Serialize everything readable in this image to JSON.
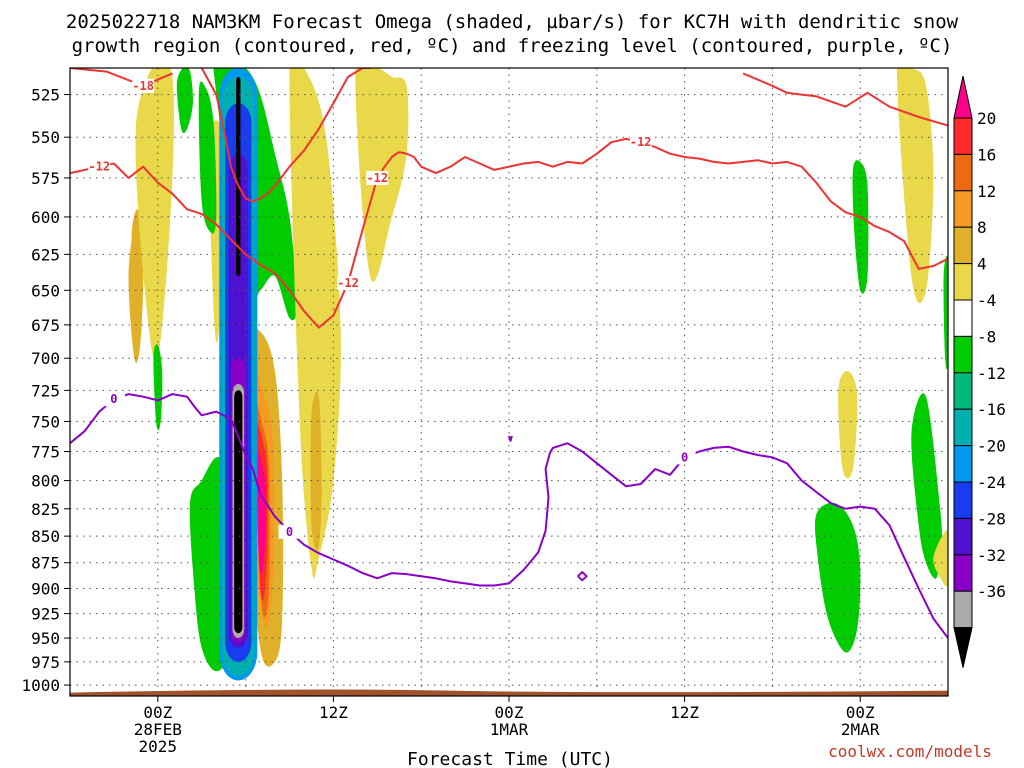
{
  "chart_data": {
    "type": "heatmap",
    "title_lines": [
      "2025022718 NAM3KM Forecast Omega (shaded, µbar/s) for KC7H with dendritic snow",
      "growth region (contoured, red, ºC) and freezing level (contoured, purple, ºC)"
    ],
    "xlabel": "Forecast Time (UTC)",
    "ylabel": "",
    "credit": "coolwx.com/models",
    "x_ticks": [
      {
        "hours": 0,
        "labels": [
          "00Z",
          "28FEB",
          "2025"
        ]
      },
      {
        "hours": 12,
        "labels": [
          "12Z"
        ]
      },
      {
        "hours": 24,
        "labels": [
          "00Z",
          "1MAR"
        ]
      },
      {
        "hours": 36,
        "labels": [
          "12Z"
        ]
      },
      {
        "hours": 48,
        "labels": [
          "00Z",
          "2MAR"
        ]
      }
    ],
    "xlim_hours": [
      -6,
      54
    ],
    "y_ticks": [
      525,
      550,
      575,
      600,
      625,
      650,
      675,
      700,
      725,
      750,
      775,
      800,
      825,
      850,
      875,
      900,
      925,
      950,
      975,
      1000
    ],
    "ylim_hpa": [
      510,
      1012
    ],
    "y_scale": "log-pressure",
    "grid": true,
    "colorbar": {
      "labels": [
        "20",
        "16",
        "12",
        "8",
        "4",
        "-4",
        "-8",
        "-12",
        "-16",
        "-20",
        "-24",
        "-28",
        "-32",
        "-36"
      ],
      "colors": {
        "magenta": "#ff0088",
        "red": "#ff2a2a",
        "dark_orange": "#ee6a10",
        "orange": "#f59a22",
        "gold": "#e0b028",
        "yellow": "#e8d84a",
        "white": "#ffffff",
        "green": "#00cc00",
        "sea_green": "#00b878",
        "teal": "#00b0b0",
        "sky_blue": "#0099ee",
        "blue": "#1a3cf0",
        "indigo": "#5010d0",
        "violet": "#8800c8",
        "gray": "#aaaaaa",
        "black": "#000000"
      }
    },
    "dgz_contours": [
      {
        "level": -18,
        "hours": [
          -6,
          -3.5,
          -1,
          1
        ],
        "pressure": [
          510,
          512,
          520,
          513
        ]
      },
      {
        "level": -18,
        "hours": [
          40,
          42,
          43,
          44,
          45,
          47,
          48.5,
          50,
          52,
          54
        ],
        "pressure": [
          513,
          520,
          524,
          525,
          526,
          532,
          524,
          532,
          538,
          543
        ]
      },
      {
        "level": -12,
        "hours": [
          -6,
          -4,
          -3,
          -2,
          -1,
          0,
          1,
          2,
          3,
          4,
          5,
          6,
          7,
          8,
          9,
          10,
          11,
          12,
          13,
          14,
          15,
          15.5,
          16,
          16.3,
          16.5,
          17,
          17.5,
          18,
          19,
          20,
          21,
          22,
          23,
          24,
          25,
          26,
          27,
          28,
          29,
          30,
          31,
          32,
          33,
          34,
          35,
          36,
          37,
          38,
          39,
          40,
          41,
          42,
          43,
          44,
          45,
          46,
          47,
          48,
          49,
          50,
          51,
          52,
          53,
          54
        ],
        "pressure": [
          572,
          568,
          566,
          575,
          568,
          578,
          585,
          595,
          598,
          605,
          615,
          625,
          632,
          638,
          650,
          665,
          677,
          668,
          645,
          608,
          575,
          568,
          562,
          560,
          559,
          560,
          562,
          568,
          572,
          568,
          562,
          566,
          570,
          568,
          566,
          565,
          568,
          565,
          566,
          560,
          553,
          551,
          553,
          556,
          560,
          562,
          563,
          565,
          566,
          565,
          564,
          566,
          565,
          568,
          578,
          590,
          597,
          600,
          606,
          610,
          616,
          635,
          633,
          628
        ]
      },
      {
        "level": -12,
        "hours": [
          3,
          4,
          4.5,
          5,
          5.5,
          6,
          6.5,
          7,
          7.5,
          8,
          9,
          10,
          11,
          12,
          13,
          14,
          14.5
        ],
        "pressure": [
          510,
          525,
          545,
          568,
          580,
          588,
          590,
          588,
          585,
          580,
          568,
          558,
          545,
          530,
          515,
          510,
          510
        ]
      }
    ],
    "freezing_level_contours": [
      {
        "level": 0,
        "hours": [
          -6,
          -5,
          -4,
          -3,
          -2,
          -1,
          0,
          1,
          2,
          2.5,
          3,
          4,
          5,
          6,
          6.5,
          7,
          8,
          9,
          10,
          11,
          12,
          13,
          14,
          15,
          16,
          17,
          18,
          19,
          20,
          21,
          22,
          23,
          24,
          25,
          26,
          26.5,
          26.7,
          26.5,
          26.8,
          27,
          28,
          29,
          30,
          31,
          32,
          33,
          34,
          35,
          36,
          37,
          38,
          39,
          40,
          41,
          42,
          43,
          44,
          45,
          46,
          47,
          48,
          49,
          50,
          51,
          52,
          53,
          54
        ],
        "pressure": [
          768,
          758,
          742,
          732,
          728,
          730,
          733,
          728,
          730,
          738,
          745,
          742,
          748,
          778,
          790,
          812,
          832,
          846,
          858,
          866,
          872,
          878,
          885,
          890,
          885,
          886,
          888,
          890,
          893,
          895,
          897,
          897,
          895,
          882,
          865,
          845,
          815,
          790,
          776,
          772,
          768,
          775,
          785,
          795,
          805,
          803,
          790,
          795,
          780,
          775,
          772,
          771,
          775,
          778,
          780,
          785,
          800,
          810,
          820,
          825,
          823,
          825,
          840,
          870,
          900,
          930,
          950
        ]
      },
      {
        "level": 0,
        "hours": [
          24,
          24.1,
          24.2
        ],
        "pressure": [
          762,
          766,
          762
        ]
      },
      {
        "level": 0,
        "hours": [
          28.7,
          29,
          29.3,
          29,
          28.7
        ],
        "pressure": [
          888,
          884,
          888,
          892,
          888
        ]
      }
    ],
    "omega_regions": [
      {
        "color": "gold",
        "hours": [
          -2,
          -1.5,
          -1.2,
          -1,
          -1.2,
          -1.6
        ],
        "pressure": [
          640,
          600,
          600,
          640,
          690,
          700
        ]
      },
      {
        "color": "gold",
        "hours": [
          -1.8,
          -1.4,
          -1.1,
          -1.4
        ],
        "pressure": [
          615,
          595,
          620,
          665
        ]
      },
      {
        "color": "yellow",
        "hours": [
          -1.5,
          -0.7,
          0,
          1,
          1,
          0.3,
          -0.3,
          -1.2
        ],
        "pressure": [
          545,
          515,
          510,
          515,
          575,
          675,
          700,
          615
        ]
      },
      {
        "color": "green",
        "hours": [
          1.3,
          1.7,
          2.2,
          2.4,
          2,
          1.6
        ],
        "pressure": [
          520,
          510,
          512,
          530,
          545,
          545
        ]
      },
      {
        "color": "green",
        "hours": [
          -0.3,
          0,
          0.3,
          0.2,
          -0.1
        ],
        "pressure": [
          700,
          690,
          710,
          750,
          752
        ]
      },
      {
        "color": "yellow",
        "hours": [
          3.5,
          4,
          4.4,
          4.3,
          3.9
        ],
        "pressure": [
          560,
          540,
          560,
          660,
          680
        ]
      },
      {
        "color": "green",
        "hours": [
          2.8,
          3.2,
          3.8,
          4,
          3.6,
          3
        ],
        "pressure": [
          525,
          520,
          540,
          600,
          610,
          590
        ]
      },
      {
        "color": "green",
        "hours": [
          3.8,
          4.5,
          5,
          6,
          7,
          8,
          9,
          9.5,
          9,
          8,
          7,
          6
        ],
        "pressure": [
          510,
          510,
          510,
          510,
          525,
          560,
          600,
          660,
          670,
          640,
          650,
          655
        ]
      },
      {
        "color": "yellow",
        "hours": [
          9,
          10,
          11.5,
          12.5,
          12,
          11,
          10.5,
          9.7
        ],
        "pressure": [
          510,
          510,
          550,
          680,
          800,
          870,
          880,
          750
        ]
      },
      {
        "color": "yellow",
        "hours": [
          13.5,
          15,
          16,
          17,
          17,
          16,
          14.5
        ],
        "pressure": [
          510,
          510,
          515,
          520,
          560,
          600,
          640
        ]
      },
      {
        "color": "green",
        "hours": [
          2.2,
          3,
          4,
          5,
          5.5,
          5.5,
          5,
          4,
          3,
          2.5
        ],
        "pressure": [
          820,
          800,
          780,
          790,
          820,
          880,
          960,
          985,
          960,
          900
        ]
      },
      {
        "color": "gold",
        "hours": [
          6,
          7,
          8,
          8.5,
          8.5,
          8,
          7,
          6.2
        ],
        "pressure": [
          690,
          680,
          710,
          800,
          930,
          975,
          960,
          820
        ]
      },
      {
        "color": "orange",
        "hours": [
          6.5,
          7.3,
          7.9,
          7.9,
          7.4,
          6.7
        ],
        "pressure": [
          720,
          730,
          770,
          880,
          940,
          870
        ]
      },
      {
        "color": "dark_orange",
        "hours": [
          6.6,
          7.2,
          7.6,
          7.6,
          7.1
        ],
        "pressure": [
          745,
          755,
          790,
          900,
          915
        ]
      },
      {
        "color": "red",
        "hours": [
          6.7,
          7.2,
          7.5,
          7.4,
          7.0
        ],
        "pressure": [
          760,
          768,
          800,
          890,
          900
        ]
      },
      {
        "color": "magenta",
        "hours": [
          6.8,
          7.2,
          7.4,
          7.2,
          6.9
        ],
        "pressure": [
          780,
          790,
          815,
          880,
          870
        ]
      },
      {
        "color": "gold",
        "hours": [
          10.5,
          11,
          11.2,
          11,
          10.5
        ],
        "pressure": [
          745,
          730,
          800,
          860,
          840
        ]
      },
      {
        "color": "green",
        "hours": [
          47.5,
          48,
          48.5,
          48.5,
          48,
          47.6
        ],
        "pressure": [
          570,
          565,
          580,
          640,
          650,
          610
        ]
      },
      {
        "color": "yellow",
        "hours": [
          50.5,
          51.5,
          52.5,
          53,
          52.5,
          51.5
        ],
        "pressure": [
          510,
          510,
          520,
          575,
          650,
          640
        ]
      },
      {
        "color": "yellow",
        "hours": [
          46.5,
          47.2,
          47.8,
          47.5,
          46.8
        ],
        "pressure": [
          725,
          710,
          730,
          790,
          790
        ]
      },
      {
        "color": "green",
        "hours": [
          51.5,
          52.5,
          53.5,
          53.5,
          53.2,
          52.5,
          52
        ],
        "pressure": [
          760,
          730,
          830,
          860,
          890,
          875,
          840
        ]
      },
      {
        "color": "green",
        "hours": [
          45,
          46.3,
          47.5,
          48,
          47.8,
          47,
          45.8,
          45.1
        ],
        "pressure": [
          830,
          820,
          840,
          880,
          940,
          965,
          930,
          870
        ]
      },
      {
        "color": "yellow",
        "hours": [
          53,
          54,
          54,
          53.5
        ],
        "pressure": [
          870,
          845,
          895,
          890
        ]
      },
      {
        "color": "green",
        "hours": [
          53.7,
          54,
          54,
          53.8
        ],
        "pressure": [
          640,
          630,
          700,
          700
        ]
      }
    ],
    "ascent_core": {
      "hours": 5.5,
      "layers": [
        {
          "color": "sky_blue",
          "hours_half_width": 1.3,
          "pressure": [
            510,
            995
          ]
        },
        {
          "color": "teal",
          "hours_half_width": 1.1,
          "pressure": [
            515,
            990
          ]
        },
        {
          "color": "blue",
          "hours_half_width": 0.9,
          "pressure": [
            530,
            975
          ]
        },
        {
          "color": "indigo",
          "hours_half_width": 0.65,
          "pressure": [
            560,
            960
          ]
        },
        {
          "color": "violet",
          "hours_half_width": 0.5,
          "pressure": [
            700,
            955
          ]
        },
        {
          "color": "gray",
          "hours_half_width": 0.4,
          "pressure": [
            720,
            950
          ]
        },
        {
          "color": "black",
          "hours_half_width": 0.28,
          "pressure": [
            725,
            945
          ]
        },
        {
          "color": "black",
          "hours_half_width": 0.15,
          "pressure": [
            515,
            640
          ]
        }
      ]
    },
    "terrain": {
      "color": "#a0522d",
      "pressure_top_hpa": 1005
    }
  }
}
